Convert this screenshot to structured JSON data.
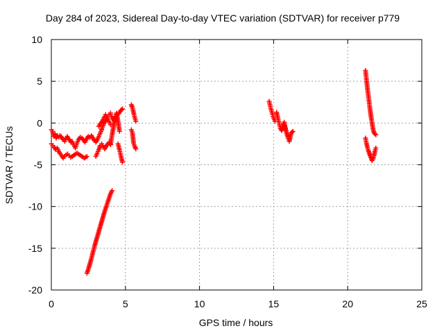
{
  "chart_data": {
    "type": "scatter",
    "title": "Day 284 of 2023, Sidereal Day-to-day VTEC variation (SDTVAR) for receiver p779",
    "xlabel": "GPS time / hours",
    "ylabel": "SDTVAR / TECUs",
    "xlim": [
      0,
      25
    ],
    "ylim": [
      -20,
      10
    ],
    "xticks": [
      0,
      5,
      10,
      15,
      20,
      25
    ],
    "yticks": [
      -20,
      -15,
      -10,
      -5,
      0,
      5,
      10
    ],
    "xtick_labels": [
      "0",
      "5",
      "10",
      "15",
      "20",
      "25"
    ],
    "ytick_labels": [
      "-20",
      "-15",
      "-10",
      "-5",
      "0",
      "5",
      "10"
    ],
    "grid": true,
    "marker": "+",
    "color": "#ff0000",
    "series": [
      {
        "name": "p779",
        "segments": [
          {
            "x0": 0.0,
            "x1": 1.4,
            "ys": [
              -0.8,
              -1.0,
              -1.6,
              -1.3,
              -1.8,
              -1.5,
              -1.7,
              -1.5,
              -1.6,
              -1.9,
              -2.0,
              -2.2,
              -1.8,
              -1.6,
              -1.9,
              -2.0,
              -2.3,
              -2.2
            ]
          },
          {
            "x0": 1.4,
            "x1": 2.6,
            "ys": [
              -2.2,
              -2.6,
              -3.0,
              -2.4,
              -2.0,
              -1.7,
              -1.8,
              -2.0,
              -2.3,
              -1.9,
              -1.6,
              -1.7
            ]
          },
          {
            "x0": 2.6,
            "x1": 3.4,
            "ys": [
              -1.7,
              -1.5,
              -1.8,
              -2.1,
              -2.3,
              -2.0,
              -1.6,
              -1.2,
              -0.8
            ]
          },
          {
            "x0": 3.4,
            "x1": 4.0,
            "ys": [
              -0.7,
              -0.3,
              0.1,
              0.4,
              0.8,
              1.0,
              1.2
            ]
          },
          {
            "x0": 4.0,
            "x1": 4.8,
            "ys": [
              1.0,
              0.6,
              0.3,
              0.7,
              1.0,
              1.2,
              1.5,
              1.7
            ]
          },
          {
            "x0": 0.0,
            "x1": 1.4,
            "ys": [
              -2.5,
              -2.7,
              -2.9,
              -3.2,
              -3.0,
              -3.4,
              -3.7,
              -3.9,
              -4.2,
              -4.0,
              -3.8,
              -3.7,
              -3.9,
              -4.1,
              -4.0
            ]
          },
          {
            "x0": 1.4,
            "x1": 2.4,
            "ys": [
              -4.0,
              -3.8,
              -3.6,
              -3.8,
              -4.0,
              -4.2,
              -4.0
            ]
          },
          {
            "x0": 3.0,
            "x1": 4.0,
            "ys": [
              -4.0,
              -3.6,
              -3.2,
              -2.7,
              -2.5,
              -2.9,
              -3.1,
              -2.8,
              -2.5,
              -2.3,
              -2.6
            ]
          },
          {
            "x0": 4.0,
            "x1": 4.6,
            "ys": [
              -2.5,
              -1.4,
              -0.4,
              0.6,
              1.2,
              0.2,
              -1.0
            ]
          },
          {
            "x0": 3.2,
            "x1": 4.0,
            "ys": [
              -0.4,
              -0.1,
              0.2,
              0.6,
              1.0,
              0.6,
              0.2,
              -0.2
            ]
          },
          {
            "x0": 4.5,
            "x1": 4.8,
            "ys": [
              -2.5,
              -3.2,
              -4.0,
              -4.7
            ]
          },
          {
            "x0": 2.4,
            "x1": 4.1,
            "ys": [
              -18.0,
              -17.3,
              -16.5,
              -15.6,
              -14.7,
              -13.9,
              -13.1,
              -12.3,
              -11.5,
              -10.7,
              -10.0,
              -9.3,
              -8.6,
              -8.1
            ]
          },
          {
            "x0": 5.4,
            "x1": 5.7,
            "ys": [
              2.2,
              1.9,
              1.5,
              1.0,
              0.6,
              0.2
            ]
          },
          {
            "x0": 5.4,
            "x1": 5.7,
            "ys": [
              -0.8,
              -1.2,
              -2.4,
              -2.8,
              -3.1
            ]
          },
          {
            "x0": 14.7,
            "x1": 15.1,
            "ys": [
              2.6,
              1.8,
              1.2,
              0.6,
              0.2
            ]
          },
          {
            "x0": 15.2,
            "x1": 15.8,
            "ys": [
              1.3,
              0.6,
              0.0,
              -0.6,
              -0.9,
              -0.4,
              0.1,
              -0.7
            ]
          },
          {
            "x0": 15.7,
            "x1": 16.3,
            "ys": [
              -0.2,
              -0.8,
              -1.6,
              -2.2,
              -1.2,
              -1.0
            ]
          },
          {
            "x0": 21.2,
            "x1": 21.9,
            "ys": [
              6.3,
              5.0,
              3.8,
              2.7,
              1.6,
              0.6,
              -0.3,
              -1.0,
              -1.3,
              -1.4
            ]
          },
          {
            "x0": 21.2,
            "x1": 21.9,
            "ys": [
              -1.8,
              -2.4,
              -2.9,
              -3.3,
              -3.6,
              -3.9,
              -4.2,
              -4.5,
              -4.3,
              -3.9,
              -3.4,
              -3.0
            ]
          }
        ]
      }
    ]
  }
}
